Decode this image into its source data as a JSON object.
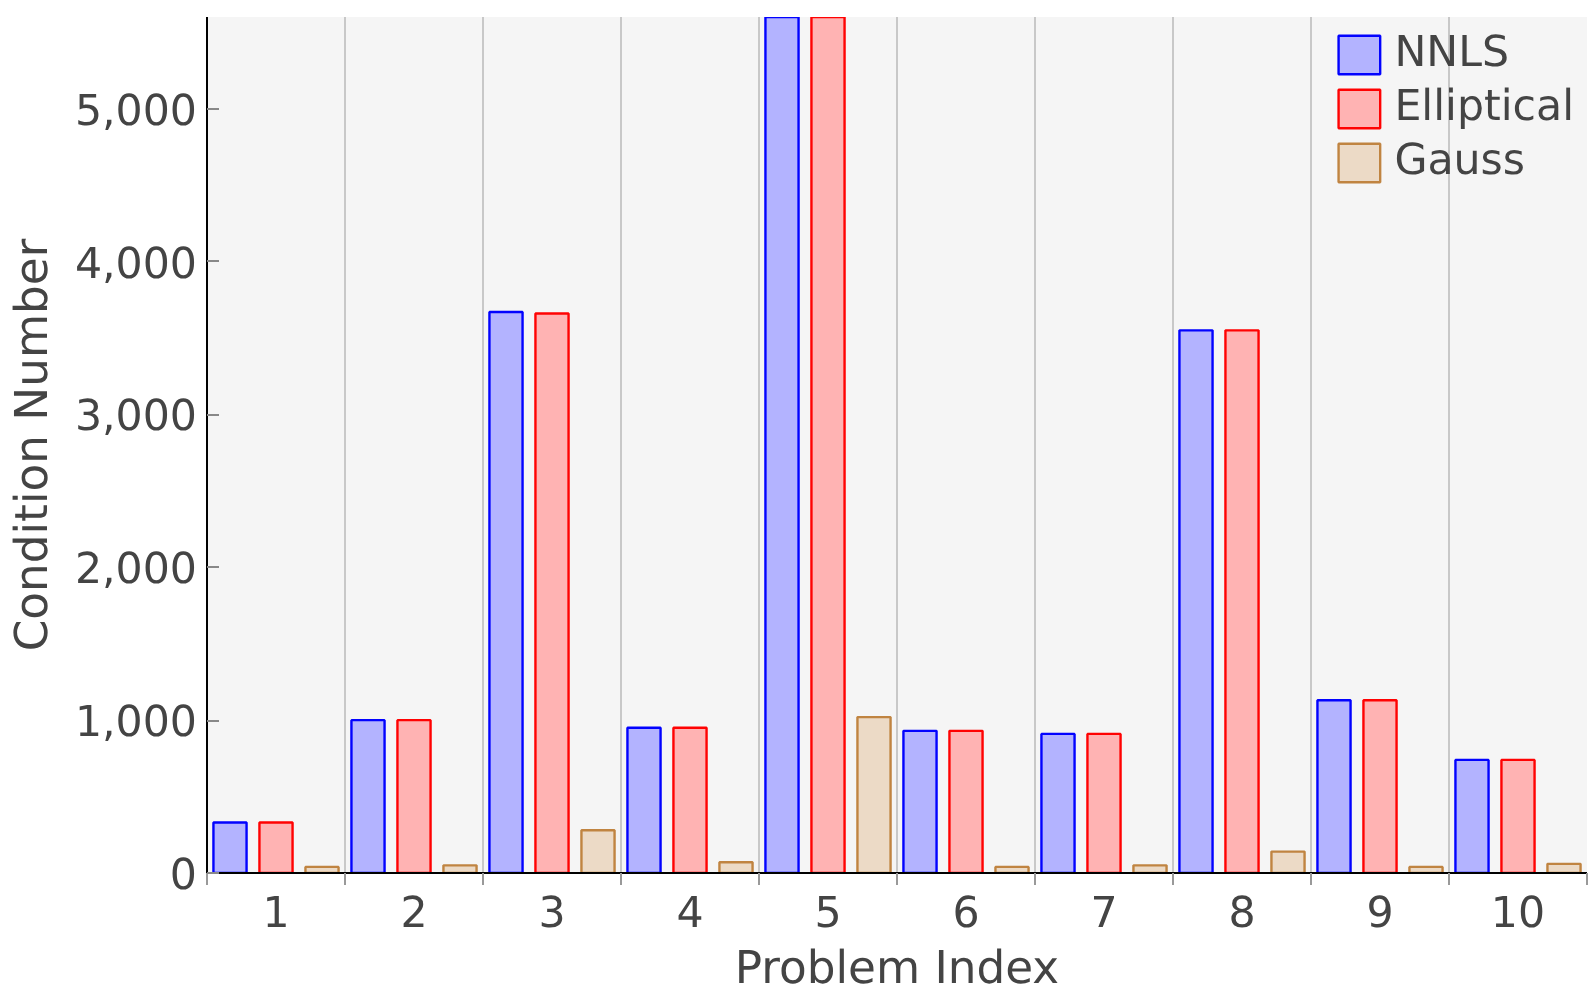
{
  "chart_data": {
    "type": "bar",
    "xlabel": "Problem Index",
    "ylabel": "Condition Number",
    "categories": [
      "1",
      "2",
      "3",
      "4",
      "5",
      "6",
      "7",
      "8",
      "9",
      "10"
    ],
    "series": [
      {
        "name": "NNLS",
        "color": "#b3b3ff",
        "values": [
          330,
          1000,
          3670,
          950,
          5600,
          930,
          910,
          3550,
          1130,
          740
        ]
      },
      {
        "name": "Elliptical",
        "color": "#ffb3b3",
        "values": [
          330,
          1000,
          3660,
          950,
          5600,
          930,
          910,
          3550,
          1130,
          740
        ]
      },
      {
        "name": "Gauss",
        "color": "#ecdac6",
        "values": [
          40,
          50,
          280,
          70,
          1020,
          40,
          50,
          140,
          40,
          60
        ]
      }
    ],
    "ylim": [
      0,
      5600
    ],
    "yticks": [
      0,
      {
        "value": 1000,
        "label": "1,000"
      },
      {
        "value": 2000,
        "label": "2,000"
      },
      {
        "value": 3000,
        "label": "3,000"
      },
      {
        "value": 4000,
        "label": "4,000"
      },
      {
        "value": 5000,
        "label": "5,000"
      }
    ],
    "grid": "x",
    "legend": "top right"
  }
}
